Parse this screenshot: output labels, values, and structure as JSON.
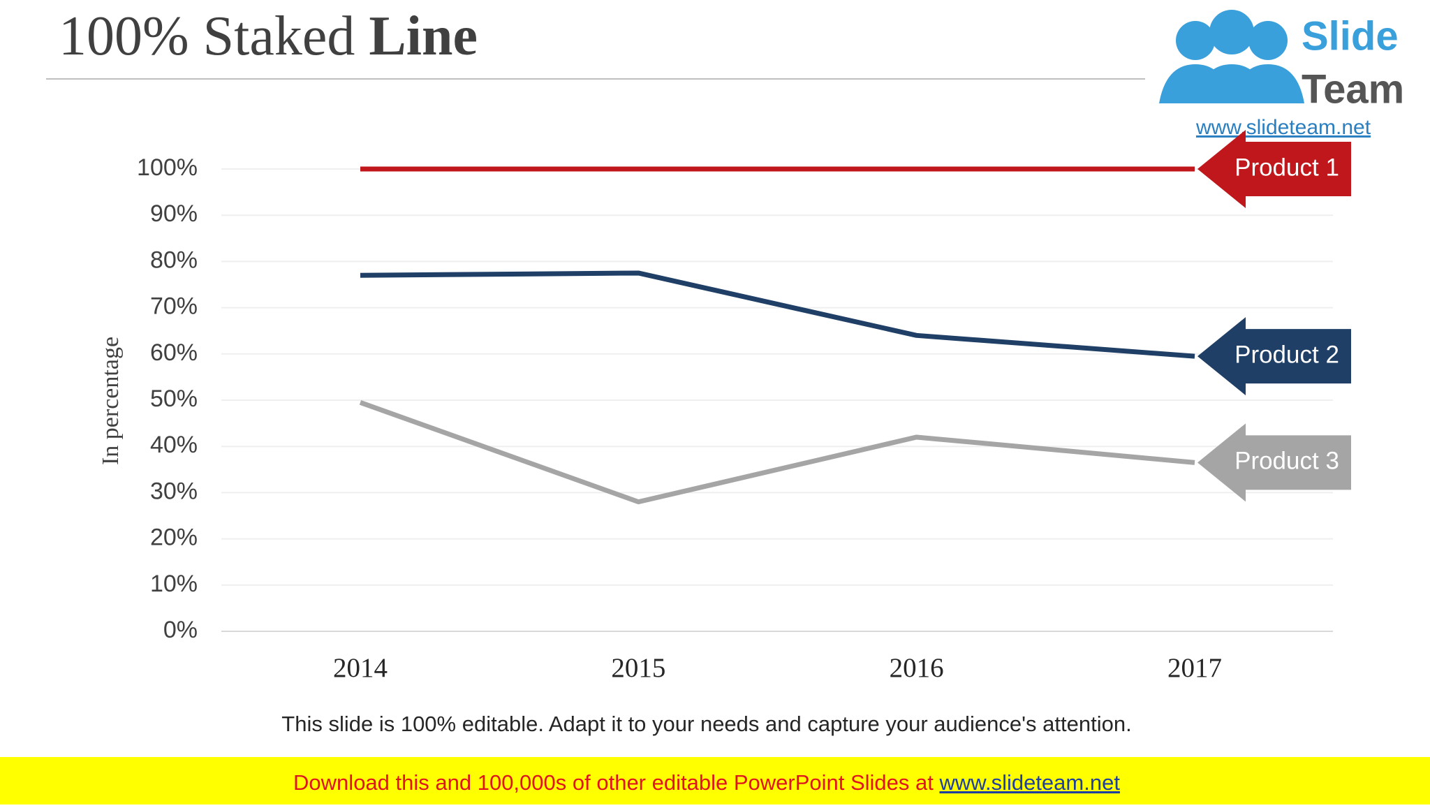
{
  "chart_data": {
    "type": "line",
    "title": {
      "regular": "100% Staked",
      "bold": "Line"
    },
    "y_label": "In percentage",
    "categories": [
      "2014",
      "2015",
      "2016",
      "2017"
    ],
    "series": [
      {
        "name": "Product 1",
        "color": "#c0171c",
        "values": [
          100,
          100,
          100,
          100
        ]
      },
      {
        "name": "Product 2",
        "color": "#1f3f66",
        "values": [
          77,
          77.5,
          64,
          59.5
        ]
      },
      {
        "name": "Product 3",
        "color": "#a5a5a5",
        "values": [
          49.5,
          28,
          42,
          36.5
        ]
      }
    ],
    "ylim": [
      0,
      100
    ],
    "yticks": [
      {
        "value": 0,
        "label": "0%"
      },
      {
        "value": 10,
        "label": "10%"
      },
      {
        "value": 20,
        "label": "20%"
      },
      {
        "value": 30,
        "label": "30%"
      },
      {
        "value": 40,
        "label": "40%"
      },
      {
        "value": 50,
        "label": "50%"
      },
      {
        "value": 60,
        "label": "60%"
      },
      {
        "value": 70,
        "label": "70%"
      },
      {
        "value": 80,
        "label": "80%"
      },
      {
        "value": 90,
        "label": "90%"
      },
      {
        "value": 100,
        "label": "100%"
      }
    ],
    "grid": true,
    "note": "This slide is 100% editable. Adapt it to your needs and capture your audience's attention."
  },
  "logo": {
    "line1": "Slide",
    "line2": "Team",
    "url": "www.slideteam.net"
  },
  "banner": {
    "text": "Download this and 100,000s of other editable PowerPoint Slides at",
    "link": "www.slideteam.net"
  }
}
